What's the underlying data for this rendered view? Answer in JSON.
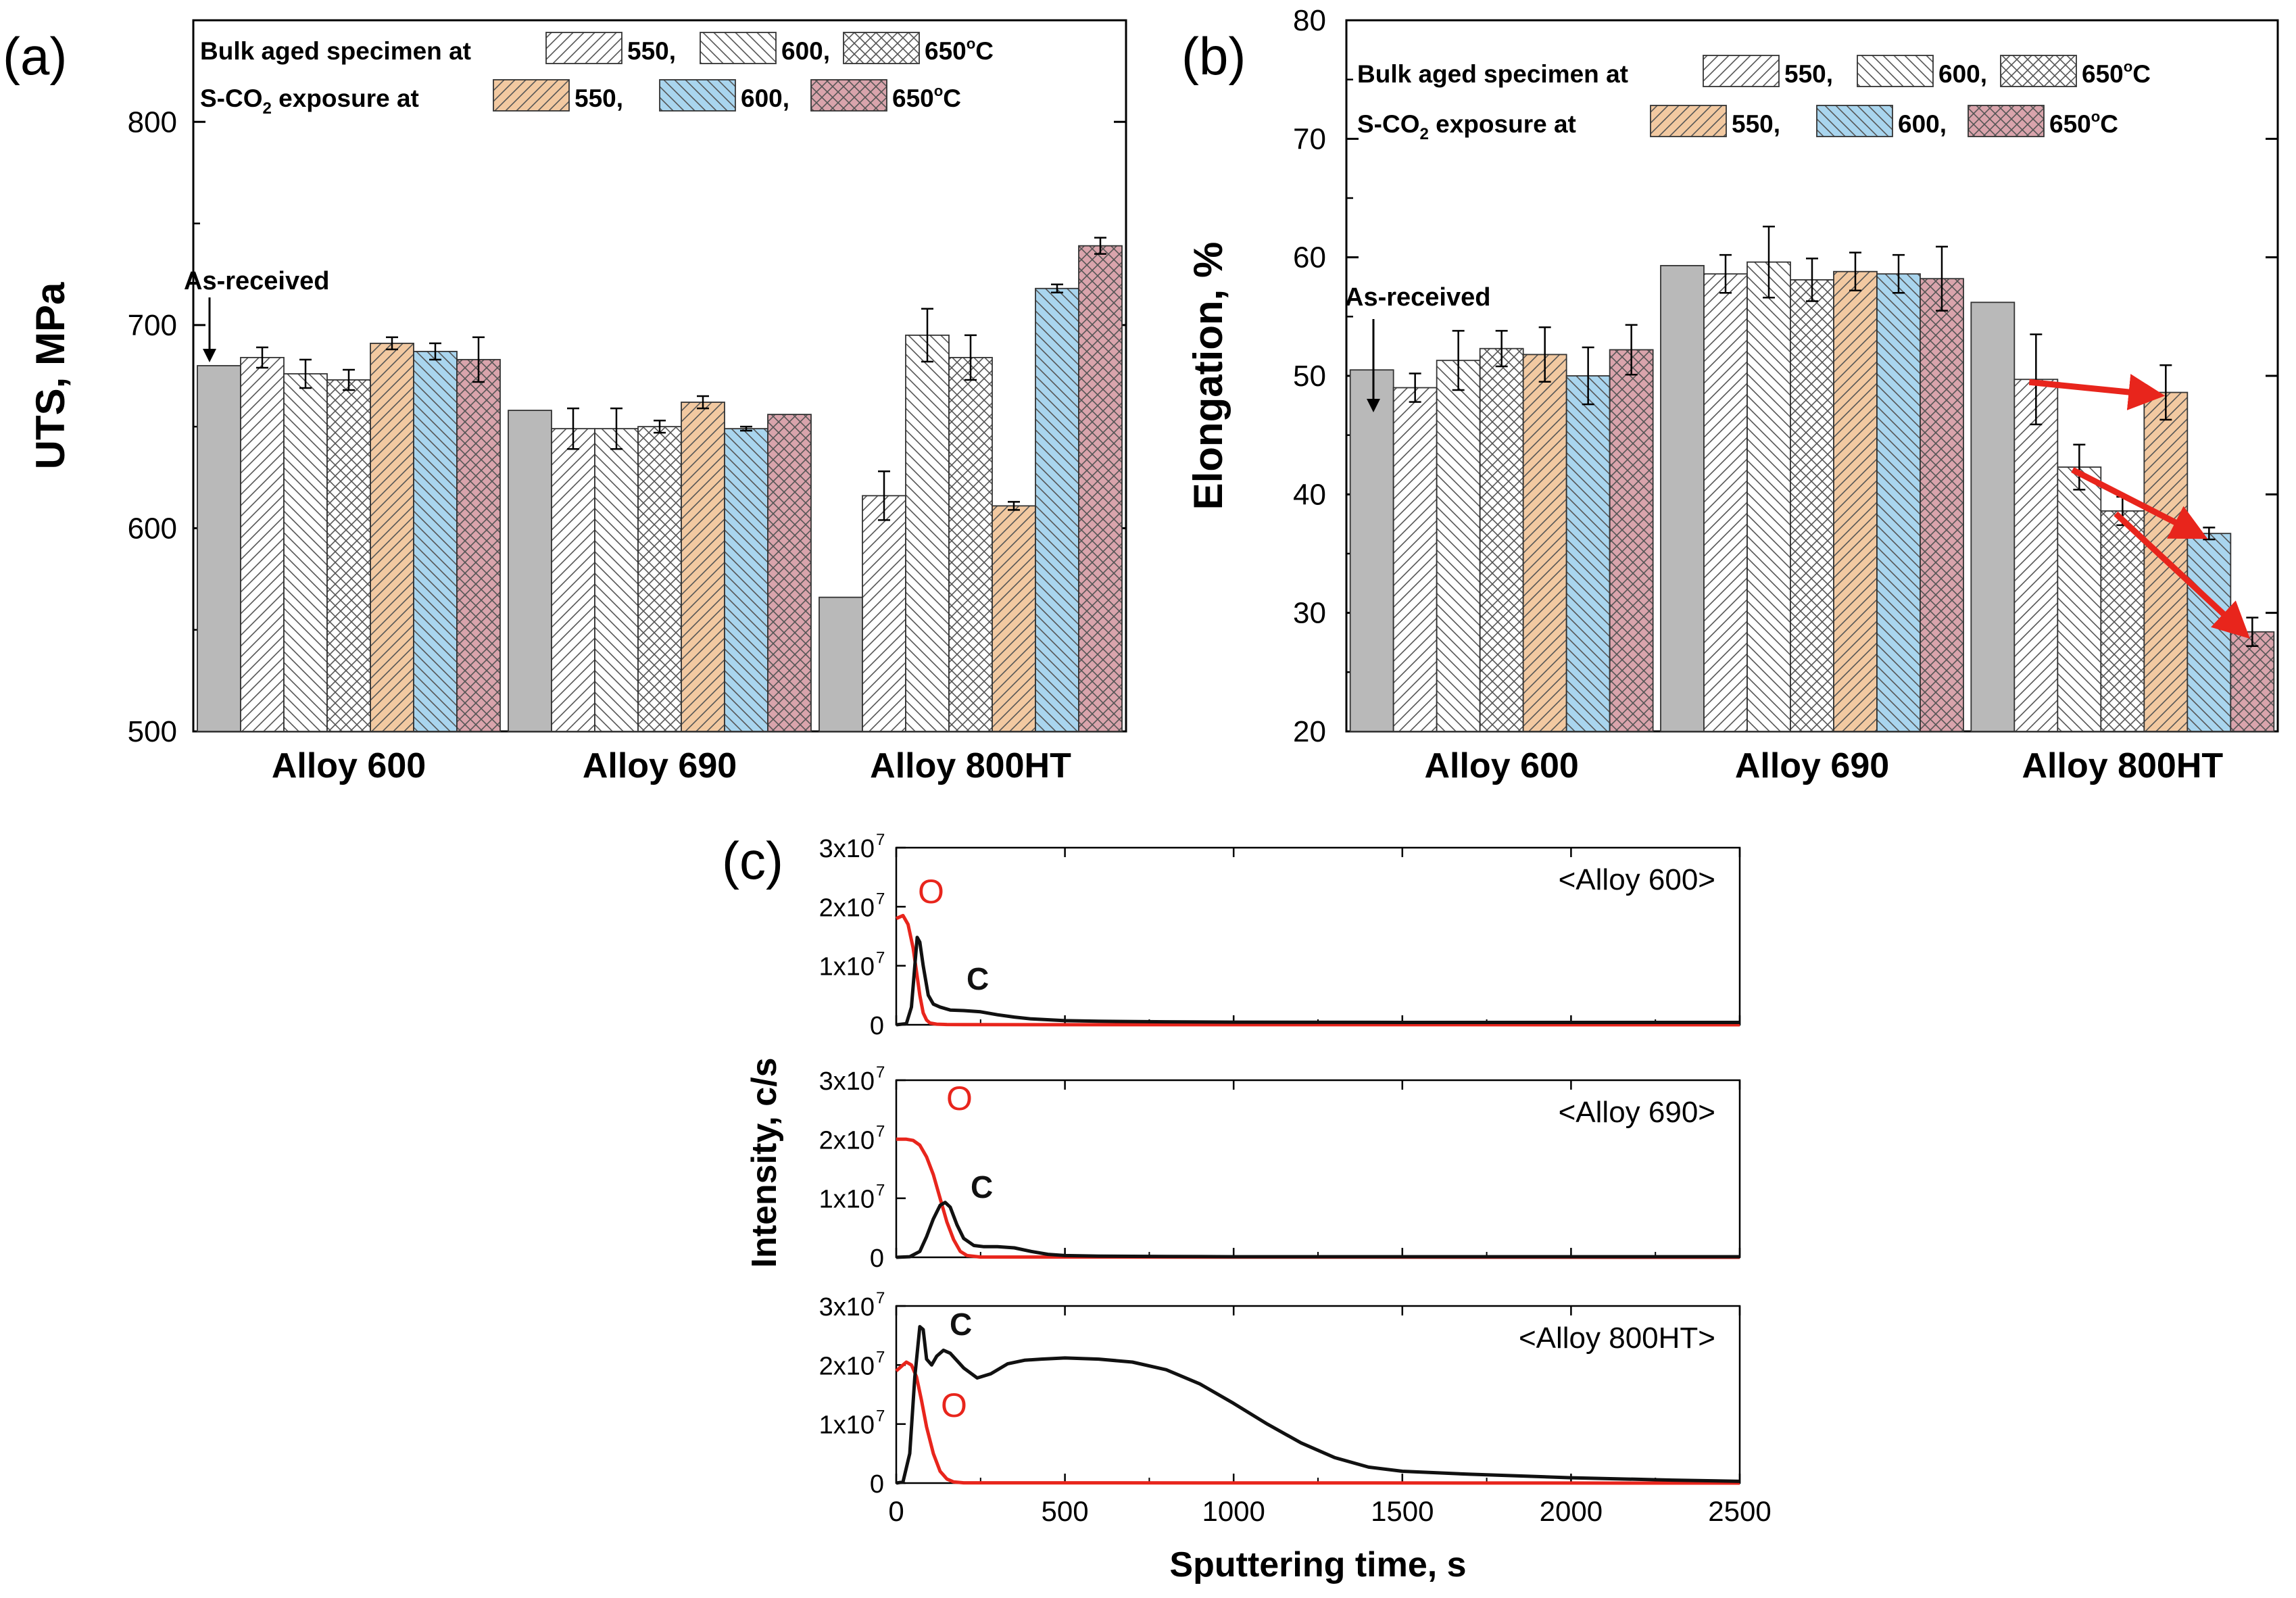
{
  "colors": {
    "as_received": "#b9b9b9",
    "s550": "#f2c9a1",
    "s600": "#a9d5ee",
    "s650": "#d9a4ac",
    "pattern_ink": "#555555",
    "oxygen": "#e8251c",
    "carbon": "#111111",
    "arrow": "#e8251c"
  },
  "legend": {
    "bulk_label": "Bulk aged specimen at",
    "sco2_label_pre": "S-CO",
    "sco2_label_sub": "2",
    "sco2_label_post": " exposure at",
    "t550": "550,",
    "t600": "600,",
    "t650": "650",
    "deg": "o",
    "unit": "C"
  },
  "as_received_label": "As-received",
  "chart_data": [
    {
      "type": "bar",
      "panel": "(a)",
      "ylabel": "UTS, MPa",
      "ylim": [
        500,
        850
      ],
      "yticks": [
        500,
        600,
        700,
        800
      ],
      "categories": [
        "Alloy 600",
        "Alloy 690",
        "Alloy 800HT"
      ],
      "series": [
        {
          "name": "As-received",
          "values": [
            680,
            658,
            566
          ],
          "errors": [
            0,
            0,
            0
          ]
        },
        {
          "name": "Bulk aged 550°C",
          "values": [
            684,
            649,
            616
          ],
          "errors": [
            5,
            10,
            12
          ]
        },
        {
          "name": "Bulk aged 600°C",
          "values": [
            676,
            649,
            695
          ],
          "errors": [
            7,
            10,
            13
          ]
        },
        {
          "name": "Bulk aged 650°C",
          "values": [
            673,
            650,
            684
          ],
          "errors": [
            5,
            3,
            11
          ]
        },
        {
          "name": "S-CO2 550°C",
          "values": [
            691,
            662,
            611
          ],
          "errors": [
            3,
            3,
            2
          ]
        },
        {
          "name": "S-CO2 600°C",
          "values": [
            687,
            649,
            718
          ],
          "errors": [
            4,
            1,
            2
          ]
        },
        {
          "name": "S-CO2 650°C",
          "values": [
            683,
            656,
            739
          ],
          "errors": [
            11,
            0,
            4
          ]
        }
      ]
    },
    {
      "type": "bar",
      "panel": "(b)",
      "ylabel": "Elongation, %",
      "ylim": [
        20,
        80
      ],
      "yticks": [
        20,
        30,
        40,
        50,
        60,
        70,
        80
      ],
      "categories": [
        "Alloy 600",
        "Alloy 690",
        "Alloy 800HT"
      ],
      "series": [
        {
          "name": "As-received",
          "values": [
            50.5,
            59.3,
            56.2
          ],
          "errors": [
            0,
            0,
            0
          ]
        },
        {
          "name": "Bulk aged 550°C",
          "values": [
            49.0,
            58.6,
            49.7
          ],
          "errors": [
            1.2,
            1.6,
            3.8
          ]
        },
        {
          "name": "Bulk aged 600°C",
          "values": [
            51.3,
            59.6,
            42.3
          ],
          "errors": [
            2.5,
            3.0,
            1.9
          ]
        },
        {
          "name": "Bulk aged 650°C",
          "values": [
            52.3,
            58.1,
            38.6
          ],
          "errors": [
            1.5,
            1.8,
            1.2
          ]
        },
        {
          "name": "S-CO2 550°C",
          "values": [
            51.8,
            58.8,
            48.6
          ],
          "errors": [
            2.3,
            1.6,
            2.3
          ]
        },
        {
          "name": "S-CO2 600°C",
          "values": [
            50.0,
            58.6,
            36.7
          ],
          "errors": [
            2.4,
            1.6,
            0.5
          ]
        },
        {
          "name": "S-CO2 650°C",
          "values": [
            52.2,
            58.2,
            28.4
          ],
          "errors": [
            2.1,
            2.7,
            1.2
          ]
        }
      ],
      "arrows": [
        {
          "from_series": 1,
          "to_series": 4,
          "category": 2
        },
        {
          "from_series": 2,
          "to_series": 5,
          "category": 2
        },
        {
          "from_series": 3,
          "to_series": 6,
          "category": 2
        }
      ]
    },
    {
      "type": "line",
      "panel": "(c)",
      "xlabel": "Sputtering time, s",
      "ylabel": "Intensity, c/s",
      "xlim": [
        0,
        2500
      ],
      "xticks": [
        0,
        500,
        1000,
        1500,
        2000,
        2500
      ],
      "ylim": [
        0,
        30000000
      ],
      "ytick_labels": [
        {
          "base": "3x10",
          "exp": "7"
        },
        {
          "base": "2x10",
          "exp": "7"
        },
        {
          "base": "1x10",
          "exp": "7"
        },
        {
          "base": "0",
          "exp": ""
        }
      ],
      "subplots": [
        {
          "title": "<Alloy 600>",
          "labels": {
            "O": "O",
            "C": "C"
          },
          "series": [
            {
              "name": "O",
              "x": [
                0,
                20,
                35,
                50,
                60,
                70,
                80,
                90,
                100,
                120,
                150,
                200,
                2500
              ],
              "y": [
                18000000,
                18500000,
                17000000,
                13000000,
                9000000,
                5000000,
                2000000,
                800000,
                300000,
                100000,
                50000,
                20000,
                0
              ]
            },
            {
              "name": "C",
              "x": [
                0,
                30,
                45,
                55,
                62,
                70,
                80,
                95,
                110,
                130,
                160,
                200,
                250,
                300,
                350,
                400,
                500,
                600,
                800,
                1000,
                1500,
                2000,
                2500
              ],
              "y": [
                0,
                200000,
                3000000,
                10000000,
                14800000,
                14000000,
                10000000,
                5000000,
                3500000,
                3000000,
                2500000,
                2400000,
                2200000,
                1700000,
                1300000,
                1000000,
                700000,
                600000,
                500000,
                450000,
                400000,
                400000,
                400000
              ]
            }
          ]
        },
        {
          "title": "<Alloy 690>",
          "labels": {
            "O": "O",
            "C": "C"
          },
          "series": [
            {
              "name": "O",
              "x": [
                0,
                30,
                50,
                70,
                90,
                110,
                130,
                150,
                170,
                190,
                210,
                250,
                2500
              ],
              "y": [
                20000000,
                20000000,
                19800000,
                19000000,
                17000000,
                14000000,
                10000000,
                6000000,
                3000000,
                1000000,
                300000,
                50000,
                0
              ]
            },
            {
              "name": "C",
              "x": [
                0,
                40,
                70,
                90,
                110,
                130,
                145,
                160,
                180,
                200,
                230,
                260,
                300,
                350,
                400,
                450,
                500,
                600,
                800,
                1000,
                1500,
                2000,
                2500
              ],
              "y": [
                0,
                100000,
                1000000,
                3500000,
                6500000,
                8800000,
                9300000,
                8500000,
                5500000,
                3200000,
                2000000,
                1800000,
                1800000,
                1600000,
                1000000,
                500000,
                300000,
                200000,
                150000,
                100000,
                100000,
                100000,
                100000
              ]
            }
          ]
        },
        {
          "title": "<Alloy 800HT>",
          "labels": {
            "O": "O",
            "C": "C"
          },
          "series": [
            {
              "name": "O",
              "x": [
                0,
                20,
                30,
                45,
                60,
                75,
                90,
                110,
                130,
                150,
                170,
                200,
                2500
              ],
              "y": [
                19000000,
                20000000,
                20500000,
                20000000,
                18000000,
                14000000,
                9500000,
                5000000,
                2000000,
                700000,
                200000,
                50000,
                0
              ]
            },
            {
              "name": "C",
              "x": [
                0,
                20,
                40,
                55,
                70,
                80,
                90,
                105,
                120,
                140,
                160,
                200,
                240,
                280,
                330,
                380,
                430,
                500,
                600,
                700,
                800,
                900,
                1000,
                1100,
                1200,
                1300,
                1400,
                1500,
                1700,
                2000,
                2300,
                2500
              ],
              "y": [
                0,
                200000,
                5000000,
                18000000,
                26500000,
                26000000,
                21000000,
                20000000,
                21500000,
                22500000,
                22000000,
                19500000,
                17800000,
                18500000,
                20200000,
                20800000,
                21000000,
                21200000,
                21000000,
                20500000,
                19200000,
                16800000,
                13500000,
                10000000,
                6800000,
                4300000,
                2700000,
                2000000,
                1500000,
                900000,
                500000,
                300000
              ]
            }
          ]
        }
      ]
    }
  ]
}
